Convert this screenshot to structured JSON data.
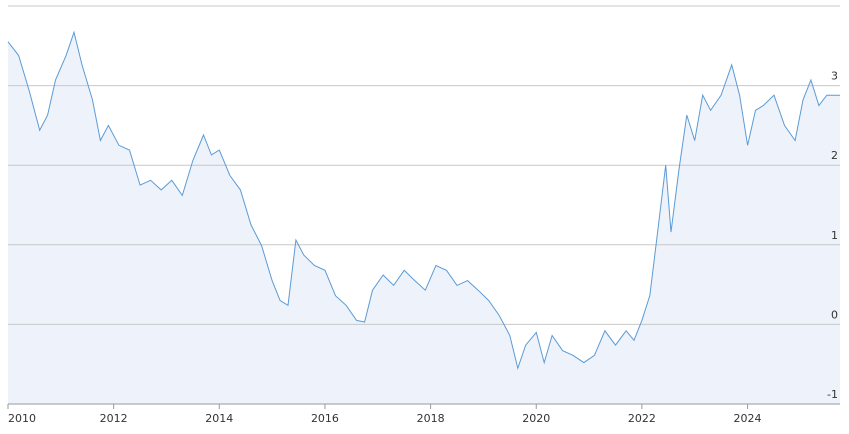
{
  "chart_data": {
    "type": "area",
    "color": "#5b9bd5",
    "fill": "#eef2fa",
    "grid": true,
    "xlim": [
      2010,
      2025.75
    ],
    "xticks": [
      2010,
      2012,
      2014,
      2016,
      2018,
      2020,
      2022,
      2024
    ],
    "ylim": [
      -1,
      4
    ],
    "yticks": [
      -1,
      0,
      1,
      2,
      3
    ],
    "x": [
      2010.0,
      2010.2,
      2010.4,
      2010.6,
      2010.75,
      2010.9,
      2011.1,
      2011.25,
      2011.4,
      2011.6,
      2011.75,
      2011.9,
      2012.1,
      2012.3,
      2012.5,
      2012.7,
      2012.9,
      2013.1,
      2013.3,
      2013.5,
      2013.7,
      2013.85,
      2014.0,
      2014.2,
      2014.4,
      2014.6,
      2014.8,
      2015.0,
      2015.15,
      2015.3,
      2015.45,
      2015.6,
      2015.8,
      2016.0,
      2016.2,
      2016.4,
      2016.6,
      2016.75,
      2016.9,
      2017.1,
      2017.3,
      2017.5,
      2017.7,
      2017.9,
      2018.1,
      2018.3,
      2018.5,
      2018.7,
      2018.9,
      2019.1,
      2019.3,
      2019.5,
      2019.65,
      2019.8,
      2020.0,
      2020.15,
      2020.3,
      2020.5,
      2020.7,
      2020.9,
      2021.1,
      2021.3,
      2021.5,
      2021.7,
      2021.85,
      2022.0,
      2022.15,
      2022.3,
      2022.45,
      2022.55,
      2022.7,
      2022.85,
      2023.0,
      2023.15,
      2023.3,
      2023.5,
      2023.7,
      2023.85,
      2024.0,
      2024.15,
      2024.3,
      2024.5,
      2024.7,
      2024.9,
      2025.05,
      2025.2,
      2025.35,
      2025.5,
      2025.75
    ],
    "values": [
      3.55,
      3.38,
      2.94,
      2.44,
      2.63,
      3.07,
      3.38,
      3.67,
      3.26,
      2.82,
      2.31,
      2.5,
      2.25,
      2.19,
      1.75,
      1.81,
      1.69,
      1.81,
      1.62,
      2.06,
      2.38,
      2.13,
      2.19,
      1.87,
      1.69,
      1.25,
      0.99,
      0.55,
      0.3,
      0.24,
      1.06,
      0.87,
      0.74,
      0.68,
      0.36,
      0.24,
      0.05,
      0.03,
      0.43,
      0.62,
      0.49,
      0.68,
      0.55,
      0.43,
      0.74,
      0.68,
      0.49,
      0.55,
      0.43,
      0.3,
      0.11,
      -0.14,
      -0.55,
      -0.26,
      -0.1,
      -0.48,
      -0.14,
      -0.33,
      -0.39,
      -0.48,
      -0.39,
      -0.08,
      -0.26,
      -0.08,
      -0.2,
      0.05,
      0.36,
      1.18,
      2.0,
      1.16,
      1.94,
      2.63,
      2.31,
      2.88,
      2.69,
      2.88,
      3.26,
      2.88,
      2.25,
      2.69,
      2.75,
      2.88,
      2.5,
      2.31,
      2.82,
      3.07,
      2.75,
      2.88,
      2.88
    ]
  }
}
